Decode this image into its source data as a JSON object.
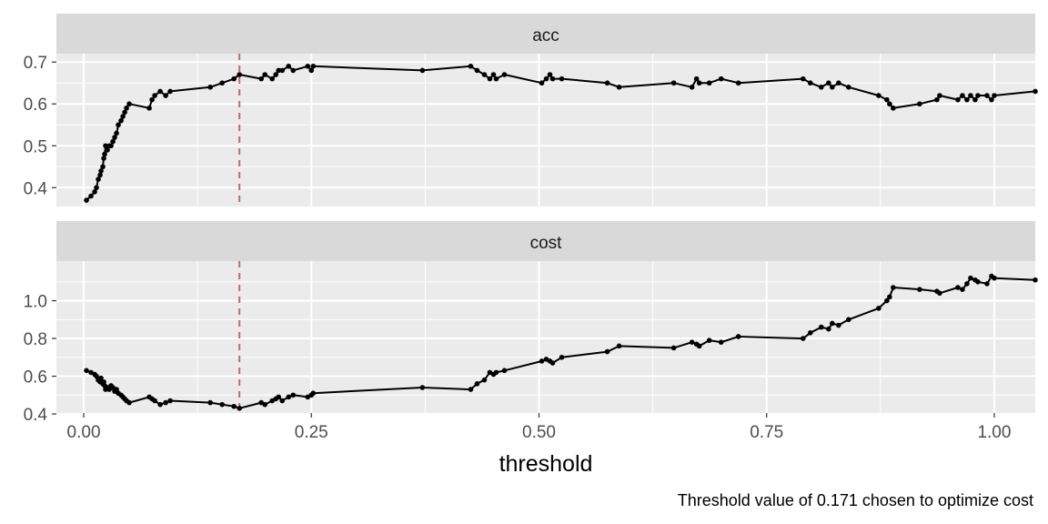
{
  "chart_data": {
    "type": "line",
    "xlabel": "threshold",
    "caption": "Threshold value of 0.171 chosen to optimize cost",
    "xlim": [
      -0.03,
      1.045
    ],
    "x_ticks": [
      0.0,
      0.25,
      0.5,
      0.75,
      1.0
    ],
    "x_tick_labels": [
      "0.00",
      "0.25",
      "0.50",
      "0.75",
      "1.00"
    ],
    "threshold_line": 0.171,
    "grid": true,
    "panels": [
      {
        "strip": "acc",
        "ylim": [
          0.355,
          0.72
        ],
        "y_ticks": [
          0.4,
          0.5,
          0.6,
          0.7
        ],
        "y_tick_labels": [
          "0.4",
          "0.5",
          "0.6",
          "0.7"
        ],
        "points": [
          [
            0.003,
            0.37
          ],
          [
            0.008,
            0.38
          ],
          [
            0.012,
            0.39
          ],
          [
            0.014,
            0.4
          ],
          [
            0.016,
            0.42
          ],
          [
            0.018,
            0.43
          ],
          [
            0.019,
            0.44
          ],
          [
            0.021,
            0.45
          ],
          [
            0.022,
            0.47
          ],
          [
            0.023,
            0.48
          ],
          [
            0.024,
            0.5
          ],
          [
            0.026,
            0.49
          ],
          [
            0.028,
            0.5
          ],
          [
            0.03,
            0.5
          ],
          [
            0.032,
            0.51
          ],
          [
            0.034,
            0.52
          ],
          [
            0.036,
            0.53
          ],
          [
            0.038,
            0.55
          ],
          [
            0.041,
            0.56
          ],
          [
            0.043,
            0.57
          ],
          [
            0.045,
            0.58
          ],
          [
            0.047,
            0.59
          ],
          [
            0.05,
            0.6
          ],
          [
            0.072,
            0.59
          ],
          [
            0.075,
            0.61
          ],
          [
            0.078,
            0.62
          ],
          [
            0.084,
            0.63
          ],
          [
            0.09,
            0.62
          ],
          [
            0.095,
            0.63
          ],
          [
            0.139,
            0.64
          ],
          [
            0.152,
            0.65
          ],
          [
            0.165,
            0.66
          ],
          [
            0.171,
            0.67
          ],
          [
            0.195,
            0.66
          ],
          [
            0.199,
            0.67
          ],
          [
            0.207,
            0.66
          ],
          [
            0.211,
            0.67
          ],
          [
            0.214,
            0.68
          ],
          [
            0.218,
            0.68
          ],
          [
            0.225,
            0.69
          ],
          [
            0.23,
            0.68
          ],
          [
            0.246,
            0.69
          ],
          [
            0.25,
            0.68
          ],
          [
            0.252,
            0.69
          ],
          [
            0.372,
            0.68
          ],
          [
            0.425,
            0.69
          ],
          [
            0.432,
            0.68
          ],
          [
            0.44,
            0.67
          ],
          [
            0.446,
            0.66
          ],
          [
            0.45,
            0.67
          ],
          [
            0.453,
            0.66
          ],
          [
            0.462,
            0.67
          ],
          [
            0.503,
            0.65
          ],
          [
            0.508,
            0.66
          ],
          [
            0.512,
            0.67
          ],
          [
            0.515,
            0.66
          ],
          [
            0.525,
            0.66
          ],
          [
            0.575,
            0.65
          ],
          [
            0.588,
            0.64
          ],
          [
            0.648,
            0.65
          ],
          [
            0.668,
            0.64
          ],
          [
            0.673,
            0.66
          ],
          [
            0.676,
            0.65
          ],
          [
            0.687,
            0.65
          ],
          [
            0.7,
            0.66
          ],
          [
            0.719,
            0.65
          ],
          [
            0.79,
            0.66
          ],
          [
            0.798,
            0.65
          ],
          [
            0.81,
            0.64
          ],
          [
            0.818,
            0.65
          ],
          [
            0.822,
            0.64
          ],
          [
            0.829,
            0.65
          ],
          [
            0.84,
            0.64
          ],
          [
            0.873,
            0.62
          ],
          [
            0.882,
            0.61
          ],
          [
            0.885,
            0.6
          ],
          [
            0.889,
            0.59
          ],
          [
            0.918,
            0.6
          ],
          [
            0.937,
            0.61
          ],
          [
            0.94,
            0.62
          ],
          [
            0.96,
            0.61
          ],
          [
            0.965,
            0.62
          ],
          [
            0.97,
            0.61
          ],
          [
            0.974,
            0.62
          ],
          [
            0.979,
            0.61
          ],
          [
            0.982,
            0.62
          ],
          [
            0.992,
            0.62
          ],
          [
            0.997,
            0.61
          ],
          [
            1.0,
            0.62
          ],
          [
            1.045,
            0.63
          ]
        ]
      },
      {
        "strip": "cost",
        "ylim": [
          0.405,
          1.21
        ],
        "y_ticks": [
          0.4,
          0.6,
          0.8,
          1.0
        ],
        "y_tick_labels": [
          "0.4",
          "0.6",
          "0.8",
          "1.0"
        ],
        "points": [
          [
            0.003,
            0.63
          ],
          [
            0.008,
            0.62
          ],
          [
            0.012,
            0.61
          ],
          [
            0.014,
            0.6
          ],
          [
            0.016,
            0.58
          ],
          [
            0.018,
            0.57
          ],
          [
            0.019,
            0.59
          ],
          [
            0.021,
            0.56
          ],
          [
            0.022,
            0.57
          ],
          [
            0.023,
            0.55
          ],
          [
            0.024,
            0.53
          ],
          [
            0.026,
            0.54
          ],
          [
            0.028,
            0.53
          ],
          [
            0.03,
            0.55
          ],
          [
            0.032,
            0.54
          ],
          [
            0.034,
            0.52
          ],
          [
            0.036,
            0.53
          ],
          [
            0.038,
            0.51
          ],
          [
            0.041,
            0.5
          ],
          [
            0.043,
            0.49
          ],
          [
            0.045,
            0.48
          ],
          [
            0.047,
            0.47
          ],
          [
            0.05,
            0.46
          ],
          [
            0.072,
            0.49
          ],
          [
            0.075,
            0.48
          ],
          [
            0.078,
            0.47
          ],
          [
            0.084,
            0.45
          ],
          [
            0.09,
            0.46
          ],
          [
            0.095,
            0.47
          ],
          [
            0.139,
            0.46
          ],
          [
            0.152,
            0.45
          ],
          [
            0.165,
            0.44
          ],
          [
            0.171,
            0.43
          ],
          [
            0.195,
            0.46
          ],
          [
            0.199,
            0.45
          ],
          [
            0.207,
            0.47
          ],
          [
            0.211,
            0.48
          ],
          [
            0.214,
            0.49
          ],
          [
            0.218,
            0.47
          ],
          [
            0.225,
            0.49
          ],
          [
            0.23,
            0.5
          ],
          [
            0.246,
            0.49
          ],
          [
            0.25,
            0.5
          ],
          [
            0.252,
            0.51
          ],
          [
            0.372,
            0.54
          ],
          [
            0.425,
            0.53
          ],
          [
            0.432,
            0.56
          ],
          [
            0.44,
            0.58
          ],
          [
            0.446,
            0.62
          ],
          [
            0.45,
            0.61
          ],
          [
            0.453,
            0.62
          ],
          [
            0.462,
            0.63
          ],
          [
            0.503,
            0.68
          ],
          [
            0.508,
            0.69
          ],
          [
            0.512,
            0.68
          ],
          [
            0.515,
            0.67
          ],
          [
            0.525,
            0.7
          ],
          [
            0.575,
            0.73
          ],
          [
            0.588,
            0.76
          ],
          [
            0.648,
            0.75
          ],
          [
            0.668,
            0.78
          ],
          [
            0.673,
            0.77
          ],
          [
            0.676,
            0.76
          ],
          [
            0.687,
            0.79
          ],
          [
            0.7,
            0.78
          ],
          [
            0.719,
            0.81
          ],
          [
            0.79,
            0.8
          ],
          [
            0.798,
            0.83
          ],
          [
            0.81,
            0.86
          ],
          [
            0.818,
            0.85
          ],
          [
            0.822,
            0.88
          ],
          [
            0.829,
            0.87
          ],
          [
            0.84,
            0.9
          ],
          [
            0.873,
            0.96
          ],
          [
            0.882,
            1.0
          ],
          [
            0.885,
            1.02
          ],
          [
            0.889,
            1.07
          ],
          [
            0.918,
            1.06
          ],
          [
            0.937,
            1.05
          ],
          [
            0.94,
            1.04
          ],
          [
            0.96,
            1.07
          ],
          [
            0.965,
            1.06
          ],
          [
            0.97,
            1.09
          ],
          [
            0.974,
            1.12
          ],
          [
            0.979,
            1.11
          ],
          [
            0.982,
            1.1
          ],
          [
            0.992,
            1.09
          ],
          [
            0.997,
            1.13
          ],
          [
            1.0,
            1.12
          ],
          [
            1.045,
            1.11
          ]
        ]
      }
    ]
  }
}
